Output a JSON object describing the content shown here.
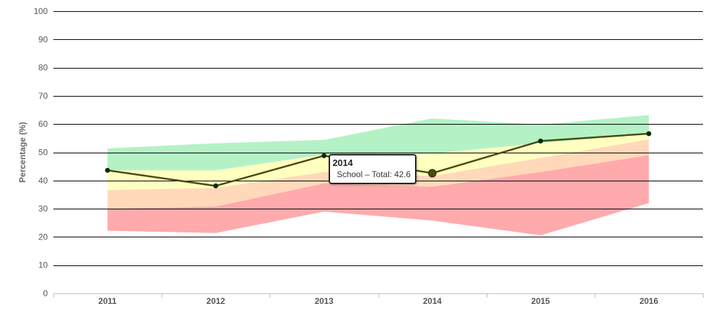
{
  "chart_data": {
    "type": "area",
    "categories": [
      "2011",
      "2012",
      "2013",
      "2014",
      "2015",
      "2016"
    ],
    "ylabel": "Percentage (%)",
    "ylim": [
      0,
      100
    ],
    "yticks": [
      0,
      10,
      20,
      30,
      40,
      50,
      60,
      70,
      80,
      90,
      100
    ],
    "grid": true,
    "bands": [
      {
        "color": "#ffaaad",
        "lower": [
          22.2,
          21.4,
          29.0,
          25.8,
          20.6,
          32.0
        ],
        "upper": [
          30.0,
          30.8,
          39.0,
          37.8,
          43.0,
          49.0
        ]
      },
      {
        "color": "#ffd9b9",
        "lower": [
          30.0,
          30.8,
          39.0,
          37.8,
          43.0,
          49.0
        ],
        "upper": [
          36.6,
          37.4,
          43.0,
          41.6,
          48.0,
          54.6
        ]
      },
      {
        "color": "#ffffc0",
        "lower": [
          36.6,
          37.4,
          43.0,
          41.6,
          48.0,
          54.6
        ],
        "upper": [
          43.6,
          43.6,
          49.2,
          49.6,
          53.2,
          56.6
        ]
      },
      {
        "color": "#b4f2c6",
        "lower": [
          43.6,
          43.6,
          49.2,
          49.6,
          53.2,
          56.6
        ],
        "upper": [
          51.4,
          53.2,
          54.4,
          62.0,
          59.8,
          63.2
        ]
      }
    ],
    "series": [
      {
        "name": "School - Total",
        "values": [
          43.6,
          38.1,
          48.8,
          42.6,
          54.0,
          56.6
        ],
        "color": "#4a4a12"
      }
    ],
    "tooltip": {
      "title": "2014",
      "label": "School – Total:",
      "value": "42.6"
    }
  }
}
